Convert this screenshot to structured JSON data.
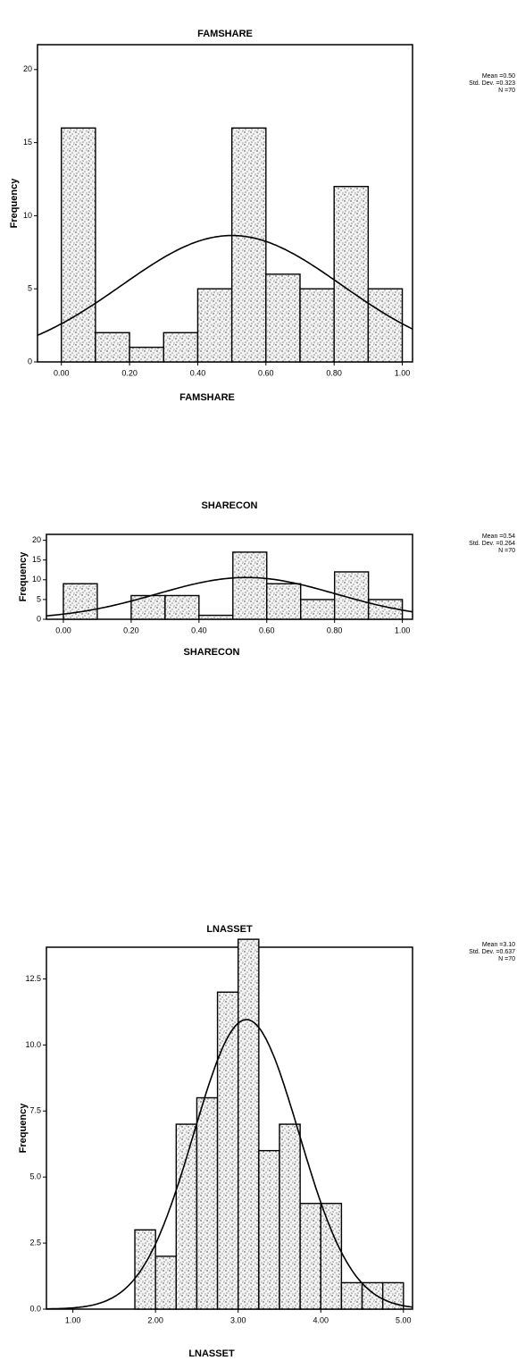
{
  "chart_data": [
    {
      "type": "histogram",
      "title": "FAMSHARE",
      "x_label": "FAMSHARE",
      "y_label": "Frequency",
      "bins": [
        0,
        0.1,
        0.2,
        0.3,
        0.4,
        0.5,
        0.6,
        0.7,
        0.8,
        0.9,
        1.0
      ],
      "values": [
        16,
        2,
        1,
        2,
        5,
        16,
        6,
        5,
        12,
        5
      ],
      "color": "#ffffff",
      "xlim": [
        -0.07,
        1.03
      ],
      "ylim": [
        0,
        21.7
      ],
      "xticks": [
        {
          "value": 0,
          "label": "0.00"
        },
        {
          "value": 0.2,
          "label": "0.20"
        },
        {
          "value": 0.4,
          "label": "0.40"
        },
        {
          "value": 0.6,
          "label": "0.60"
        },
        {
          "value": 0.8,
          "label": "0.80"
        },
        {
          "value": 1.0,
          "label": "1.00"
        }
      ],
      "yticks": [
        0,
        5,
        10,
        15,
        20
      ],
      "stats": [
        {
          "value": 0.5,
          "label": "Mean =0.50"
        },
        {
          "value": 0.323,
          "label": "Std. Dev. =0.323"
        },
        {
          "value": 70,
          "label": "N =70"
        }
      ]
    },
    {
      "type": "histogram",
      "title": "SHARECON",
      "x_label": "SHARECON",
      "y_label": "Frequency",
      "bins": [
        0,
        0.1,
        0.2,
        0.3,
        0.4,
        0.5,
        0.6,
        0.7,
        0.8,
        0.9,
        1.0
      ],
      "values": [
        9,
        0,
        6,
        6,
        1,
        17,
        9,
        5,
        12,
        5
      ],
      "color": "#ffffff",
      "xlim": [
        -0.05,
        1.03
      ],
      "ylim": [
        0,
        21.5
      ],
      "xticks": [
        {
          "value": 0,
          "label": "0.00"
        },
        {
          "value": 0.2,
          "label": "0.20"
        },
        {
          "value": 0.4,
          "label": "0.40"
        },
        {
          "value": 0.6,
          "label": "0.60"
        },
        {
          "value": 0.8,
          "label": "0.80"
        },
        {
          "value": 1.0,
          "label": "1.00"
        }
      ],
      "yticks": [
        0,
        5,
        10,
        15,
        20
      ],
      "stats": [
        {
          "value": 0.54,
          "label": "Mean =0.54"
        },
        {
          "value": 0.264,
          "label": "Std. Dev. =0.264"
        },
        {
          "value": 70,
          "label": "N =70"
        }
      ]
    },
    {
      "type": "histogram",
      "title": "LNASSET",
      "x_label": "LNASSET",
      "y_label": "Frequency",
      "bins": [
        1.75,
        2.0,
        2.25,
        2.5,
        2.75,
        3.0,
        3.25,
        3.5,
        3.75,
        4.0,
        4.25,
        4.5,
        4.75,
        5.0
      ],
      "values": [
        3,
        2,
        7,
        8,
        12,
        14,
        6,
        7,
        4,
        4,
        1,
        1,
        1
      ],
      "color": "#ffffff",
      "xlim": [
        0.68,
        5.11
      ],
      "ylim": [
        0,
        13.7
      ],
      "xticks": [
        {
          "value": 1,
          "label": "1.00"
        },
        {
          "value": 2,
          "label": "2.00"
        },
        {
          "value": 3,
          "label": "3.00"
        },
        {
          "value": 4,
          "label": "4.00"
        },
        {
          "value": 5,
          "label": "5.00"
        }
      ],
      "yticks": [
        {
          "value": 0,
          "label": "0.0"
        },
        2.5,
        {
          "value": 5,
          "label": "5.0"
        },
        7.5,
        {
          "value": 10,
          "label": "10.0"
        },
        12.5
      ],
      "stats": [
        {
          "value": 3.1,
          "label": "Mean =3.10"
        },
        {
          "value": 0.637,
          "label": "Std. Dev. =0.637"
        },
        {
          "value": 70,
          "label": "N =70"
        }
      ]
    }
  ]
}
